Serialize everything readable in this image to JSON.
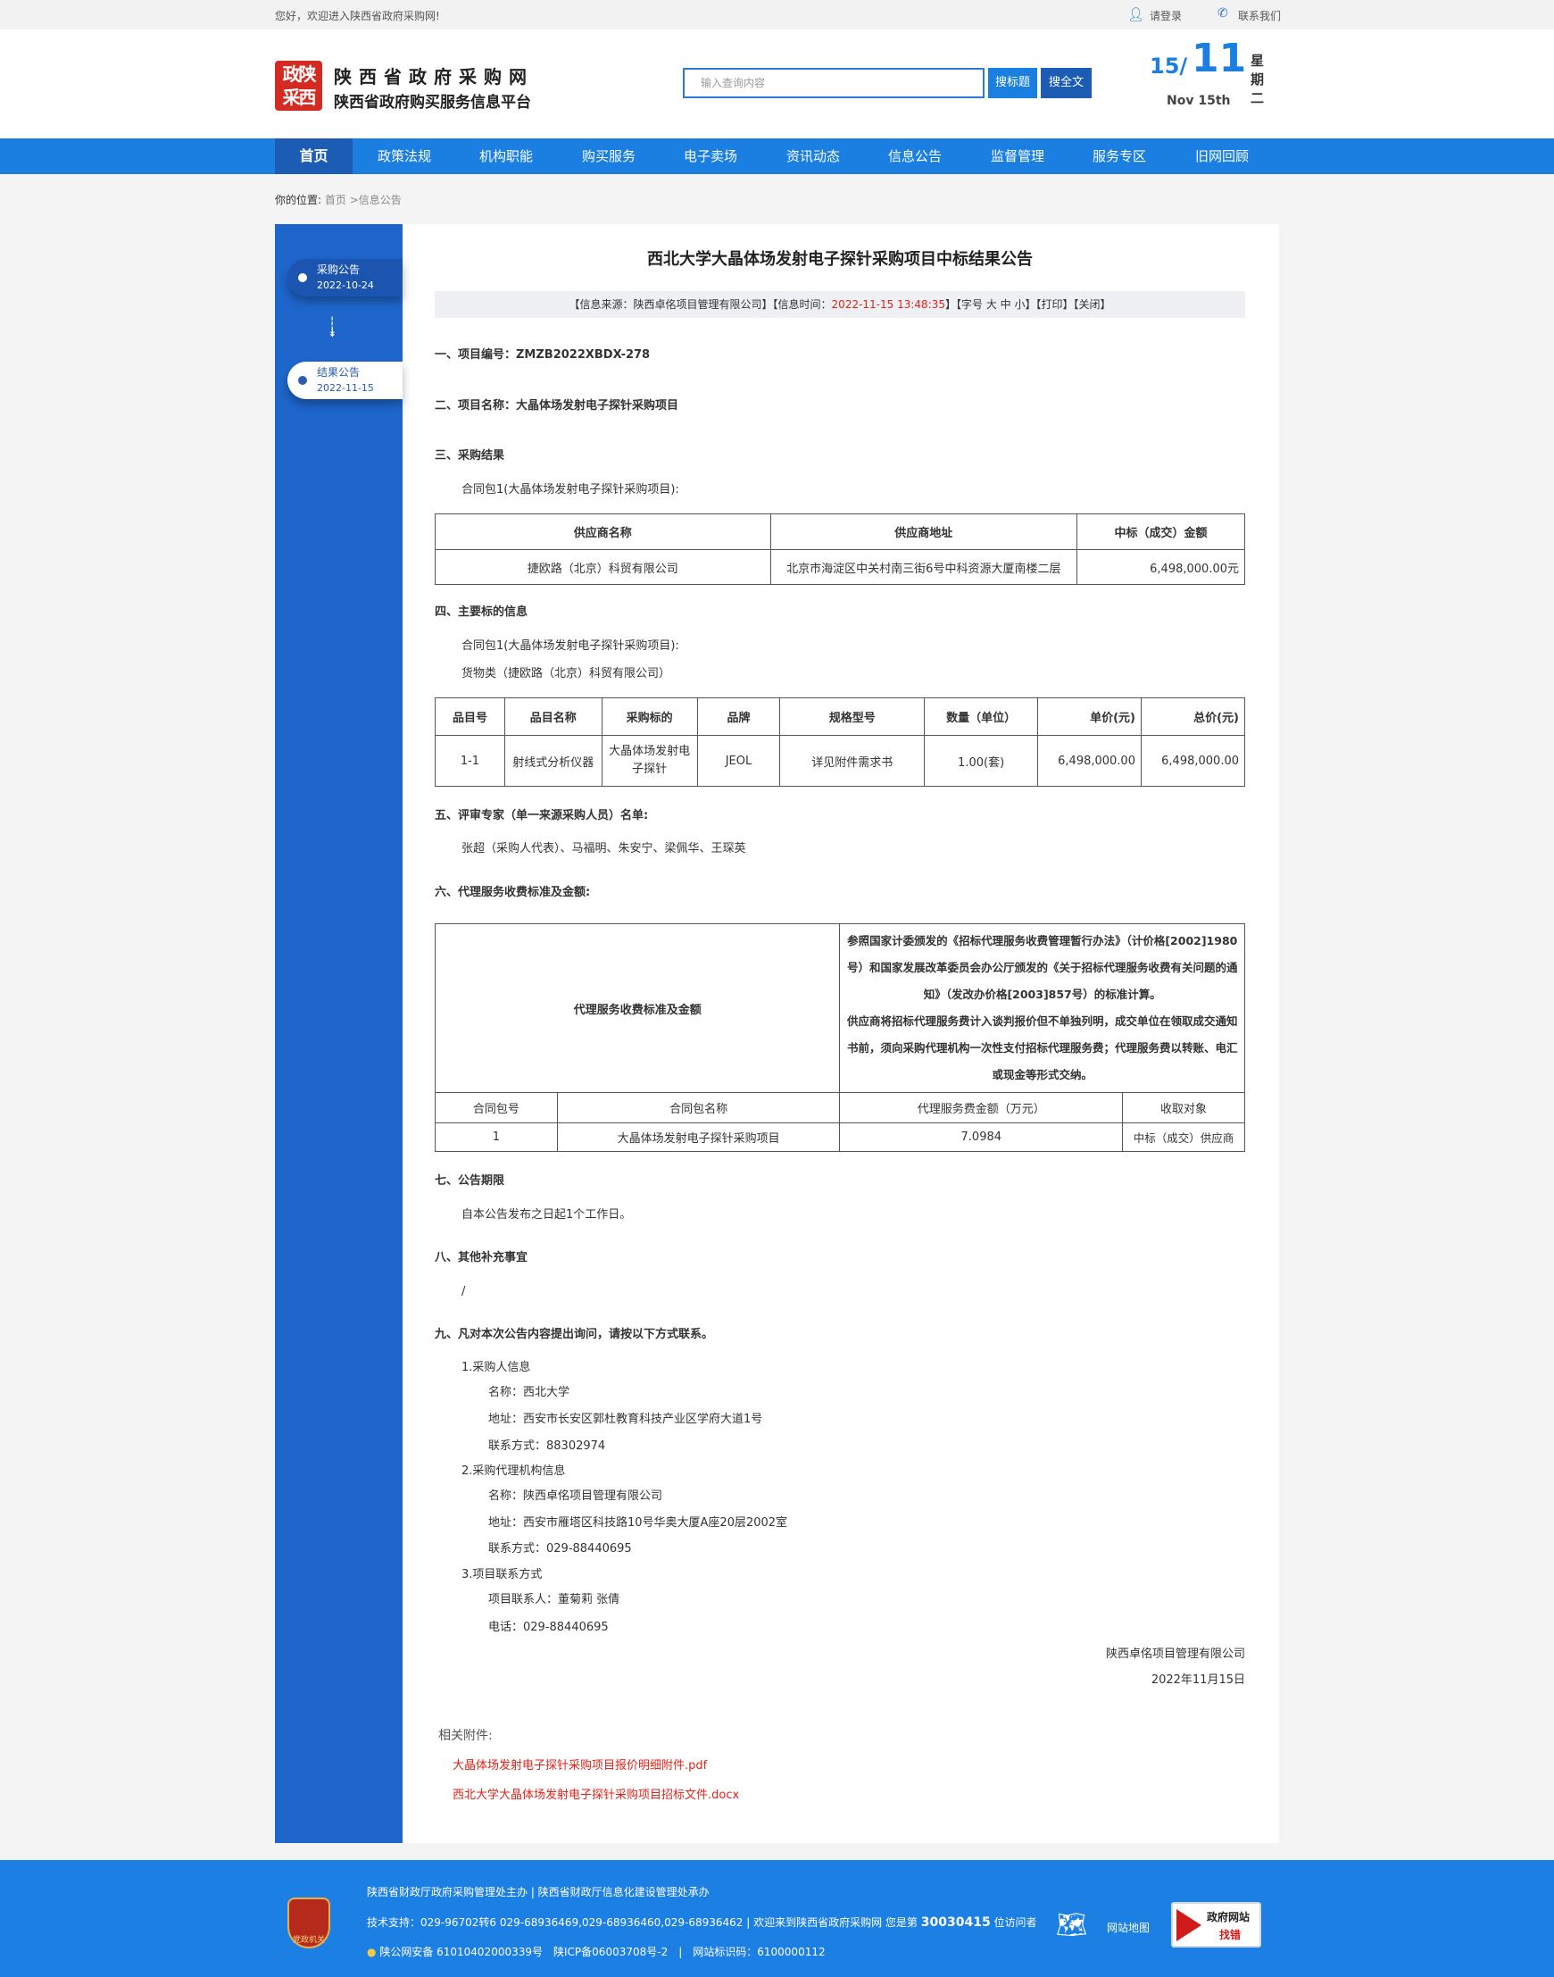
{
  "topbar": {
    "welcome": "您好，欢迎进入陕西省政府采购网!",
    "login": "请登录",
    "contact": "联系我们"
  },
  "header": {
    "logo_text": [
      "政陕",
      "采西"
    ],
    "site_title": "陕西省政府采购网",
    "site_subtitle": "陕西省政府购买服务信息平台",
    "search_placeholder": "输入查询内容",
    "search_title_btn": "搜标题",
    "search_full_btn": "搜全文",
    "date": {
      "day_month": "15/",
      "month": "11",
      "en": "Nov 15th",
      "weekday": [
        "星",
        "期",
        "二"
      ]
    }
  },
  "nav": {
    "items": [
      "首页",
      "政策法规",
      "机构职能",
      "购买服务",
      "电子卖场",
      "资讯动态",
      "信息公告",
      "监督管理",
      "服务专区",
      "旧网回顾"
    ],
    "active": 0
  },
  "breadcrumb": {
    "label": "你的位置:",
    "path": "首页 >信息公告"
  },
  "sidebar": {
    "items": [
      {
        "label": "采购公告",
        "date": "2022-10-24"
      },
      {
        "label": "结果公告",
        "date": "2022-11-15"
      }
    ]
  },
  "article": {
    "title": "西北大学大晶体场发射电子探针采购项目中标结果公告",
    "meta": {
      "source": "【信息来源：陕西卓佲项目管理有限公司】【信息时间：",
      "time": "2022-11-15 13:48:35",
      "tail": "】【字号 大 中 小】【打印】【关闭】"
    },
    "s1": "一、项目编号：ZMZB2022XBDX-278",
    "s2": "二、项目名称：大晶体场发射电子探针采购项目",
    "s3": "三、采购结果",
    "s3_pkg": "合同包1(大晶体场发射电子探针采购项目):",
    "table1": {
      "headers": [
        "供应商名称",
        "供应商地址",
        "中标（成交）金额"
      ],
      "row": [
        "捷欧路（北京）科贸有限公司",
        "北京市海淀区中关村南三街6号中科资源大厦南楼二层",
        "6,498,000.00元"
      ]
    },
    "s4": "四、主要标的信息",
    "s4_pkg": "合同包1(大晶体场发射电子探针采购项目):",
    "s4_cat": "货物类（捷欧路（北京）科贸有限公司）",
    "table2": {
      "headers": [
        "品目号",
        "品目名称",
        "采购标的",
        "品牌",
        "规格型号",
        "数量（单位）",
        "单价(元)",
        "总价(元)"
      ],
      "row": [
        "1-1",
        "射线式分析仪器",
        "大晶体场发射电子探针",
        "JEOL",
        "详见附件需求书",
        "1.00(套)",
        "6,498,000.00",
        "6,498,000.00"
      ]
    },
    "s5": "五、评审专家（单一来源采购人员）名单:",
    "s5_names": "张超（采购人代表）、马福明、朱安宁、梁佩华、王琛英",
    "s6": "六、代理服务收费标准及金额:",
    "table3": {
      "label": "代理服务收费标准及金额",
      "desc1": "参照国家计委颁发的《招标代理服务收费管理暂行办法》（计价格[2002]1980号）和国家发展改革委员会办公厅颁发的《关于招标代理服务收费有关问题的通知》（发改办价格[2003]857号）的标准计算。",
      "desc2": "供应商将招标代理服务费计入谈判报价但不单独列明，成交单位在领取成交通知书前，须向采购代理机构一次性支付招标代理服务费；代理服务费以转账、电汇或现金等形式交纳。",
      "headers": [
        "合同包号",
        "合同包名称",
        "代理服务费金额（万元）",
        "收取对象"
      ],
      "row": [
        "1",
        "大晶体场发射电子探针采购项目",
        "7.0984",
        "中标（成交）供应商"
      ]
    },
    "s7": "七、公告期限",
    "s7_text": "自本公告发布之日起1个工作日。",
    "s8": "八、其他补充事宜",
    "s8_text": "/",
    "s9": "九、凡对本次公告内容提出询问，请按以下方式联系。",
    "c1": "1.采购人信息",
    "c1_name": "名称：西北大学",
    "c1_addr": "地址：西安市长安区郭杜教育科技产业区学府大道1号",
    "c1_tel": "联系方式：88302974",
    "c2": "2.采购代理机构信息",
    "c2_name": "名称：陕西卓佲项目管理有限公司",
    "c2_addr": "地址：西安市雁塔区科技路10号华奥大厦A座20层2002室",
    "c2_tel": "联系方式：029-88440695",
    "c3": "3.项目联系方式",
    "c3_person": "项目联系人：董菊莉 张倩",
    "c3_tel": "电话：029-88440695",
    "sign_company": "陕西卓佲项目管理有限公司",
    "sign_date": "2022年11月15日",
    "attach_label": "相关附件:",
    "attachments": [
      "大晶体场发射电子探针采购项目报价明细附件.pdf",
      "西北大学大晶体场发射电子探针采购项目招标文件.docx"
    ]
  },
  "footer": {
    "line1": "陕西省财政厅政府采购管理处主办 | 陕西省财政厅信息化建设管理处承办",
    "line2_pre": "技术支持：029-96702转6 029-68936469,029-68936460,029-68936462 | 欢迎来到陕西省政府采购网 您是第",
    "visitors": "30030415",
    "line2_post": "位访问者",
    "line3": "陕公网安备 61010402000339号　陕ICP备06003708号-2　|　网站标识码：6100000112",
    "sitemap": "网站地图",
    "emblem_text": "党政机关",
    "report": [
      "政府网站",
      "找错"
    ]
  },
  "colors": {
    "nav": "#1a7fe0",
    "nav_active": "#1c5cb5",
    "sidebar": "#1e66cc",
    "footer": "#1b7fe3",
    "highlight": "#e2231a"
  }
}
